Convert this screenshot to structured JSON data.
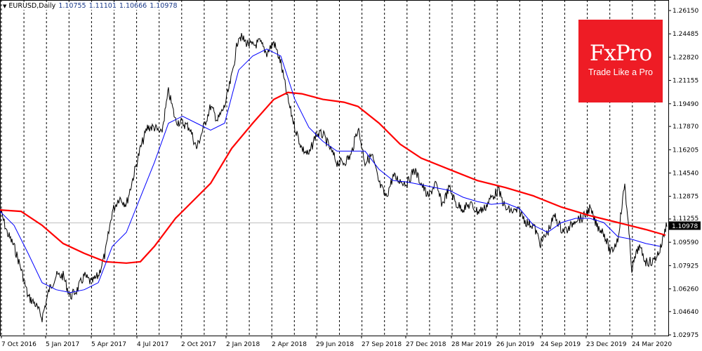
{
  "header": {
    "symbol": "EURUSD,Daily",
    "open": "1.10755",
    "high": "1.11101",
    "low": "1.10666",
    "close": "1.10978"
  },
  "logo": {
    "brand": "FxPro",
    "tagline": "Trade Like a Pro",
    "color": "#ee1c25"
  },
  "chart_data": {
    "type": "line",
    "x_unit": "trading days",
    "y_ticks": [
      "1.26150",
      "1.24485",
      "1.22820",
      "1.21155",
      "1.19490",
      "1.17870",
      "1.16205",
      "1.14540",
      "1.12875",
      "1.11255",
      "1.09590",
      "1.07925",
      "1.06260",
      "1.04640",
      "1.02975"
    ],
    "ylim": [
      1.02975,
      1.2615
    ],
    "x_ticks": [
      {
        "label": "7 Oct 2016",
        "bar": 2
      },
      {
        "label": "5 Jan 2017",
        "bar": 65
      },
      {
        "label": "5 Apr 2017",
        "bar": 130
      },
      {
        "label": "4 Jul 2017",
        "bar": 195
      },
      {
        "label": "2 Oct 2017",
        "bar": 258
      },
      {
        "label": "2 Jan 2018",
        "bar": 322
      },
      {
        "label": "2 Apr 2018",
        "bar": 387
      },
      {
        "label": "29 Jun 2018",
        "bar": 450
      },
      {
        "label": "27 Sep 2018",
        "bar": 515
      },
      {
        "label": "27 Dec 2018",
        "bar": 578
      },
      {
        "label": "28 Mar 2019",
        "bar": 643
      },
      {
        "label": "26 Jun 2019",
        "bar": 707
      },
      {
        "label": "24 Sep 2019",
        "bar": 770
      },
      {
        "label": "23 Dec 2019",
        "bar": 835
      },
      {
        "label": "24 Mar 2020",
        "bar": 900
      }
    ],
    "current_price": "1.10978",
    "grid": "vertical dashed",
    "price_step_bars": 10,
    "price": [
      1.12,
      1.103,
      1.093,
      1.077,
      1.057,
      1.052,
      1.042,
      1.062,
      1.072,
      1.072,
      1.057,
      1.062,
      1.072,
      1.067,
      1.072,
      1.088,
      1.118,
      1.128,
      1.123,
      1.143,
      1.163,
      1.178,
      1.178,
      1.173,
      1.204,
      1.183,
      1.181,
      1.178,
      1.163,
      1.178,
      1.193,
      1.183,
      1.193,
      1.214,
      1.244,
      1.239,
      1.236,
      1.239,
      1.231,
      1.239,
      1.224,
      1.198,
      1.178,
      1.163,
      1.158,
      1.173,
      1.173,
      1.163,
      1.153,
      1.153,
      1.158,
      1.178,
      1.153,
      1.158,
      1.138,
      1.128,
      1.143,
      1.14,
      1.138,
      1.148,
      1.138,
      1.128,
      1.138,
      1.123,
      1.135,
      1.123,
      1.12,
      1.123,
      1.118,
      1.12,
      1.128,
      1.133,
      1.12,
      1.118,
      1.118,
      1.11,
      1.108,
      1.095,
      1.103,
      1.115,
      1.105,
      1.105,
      1.113,
      1.113,
      1.12,
      1.108,
      1.103,
      1.088,
      1.098,
      1.138,
      1.077,
      1.093,
      1.082,
      1.082,
      1.09,
      1.11
    ],
    "series": [
      {
        "color": "#ff0000",
        "points": [
          [
            0,
            1.119
          ],
          [
            30,
            1.118
          ],
          [
            60,
            1.108
          ],
          [
            90,
            1.095
          ],
          [
            120,
            1.088
          ],
          [
            150,
            1.082
          ],
          [
            180,
            1.081
          ],
          [
            200,
            1.082
          ],
          [
            220,
            1.093
          ],
          [
            250,
            1.113
          ],
          [
            280,
            1.128
          ],
          [
            300,
            1.138
          ],
          [
            330,
            1.163
          ],
          [
            360,
            1.181
          ],
          [
            390,
            1.198
          ],
          [
            410,
            1.203
          ],
          [
            430,
            1.202
          ],
          [
            460,
            1.198
          ],
          [
            490,
            1.196
          ],
          [
            510,
            1.193
          ],
          [
            540,
            1.181
          ],
          [
            570,
            1.166
          ],
          [
            600,
            1.156
          ],
          [
            640,
            1.148
          ],
          [
            680,
            1.14
          ],
          [
            720,
            1.135
          ],
          [
            760,
            1.129
          ],
          [
            800,
            1.121
          ],
          [
            840,
            1.115
          ],
          [
            880,
            1.11
          ],
          [
            920,
            1.105
          ],
          [
            948,
            1.101
          ]
        ]
      },
      {
        "color": "#0000ff",
        "points": [
          [
            0,
            1.118
          ],
          [
            20,
            1.108
          ],
          [
            40,
            1.088
          ],
          [
            60,
            1.067
          ],
          [
            80,
            1.062
          ],
          [
            100,
            1.06
          ],
          [
            120,
            1.062
          ],
          [
            140,
            1.067
          ],
          [
            160,
            1.093
          ],
          [
            180,
            1.103
          ],
          [
            200,
            1.128
          ],
          [
            220,
            1.153
          ],
          [
            240,
            1.181
          ],
          [
            260,
            1.186
          ],
          [
            280,
            1.181
          ],
          [
            300,
            1.176
          ],
          [
            320,
            1.181
          ],
          [
            340,
            1.219
          ],
          [
            360,
            1.229
          ],
          [
            380,
            1.234
          ],
          [
            400,
            1.229
          ],
          [
            420,
            1.198
          ],
          [
            440,
            1.178
          ],
          [
            460,
            1.168
          ],
          [
            480,
            1.161
          ],
          [
            500,
            1.161
          ],
          [
            520,
            1.161
          ],
          [
            540,
            1.148
          ],
          [
            560,
            1.14
          ],
          [
            580,
            1.139
          ],
          [
            600,
            1.137
          ],
          [
            620,
            1.135
          ],
          [
            640,
            1.133
          ],
          [
            660,
            1.128
          ],
          [
            680,
            1.125
          ],
          [
            700,
            1.123
          ],
          [
            720,
            1.124
          ],
          [
            740,
            1.12
          ],
          [
            760,
            1.108
          ],
          [
            780,
            1.103
          ],
          [
            800,
            1.11
          ],
          [
            820,
            1.113
          ],
          [
            840,
            1.113
          ],
          [
            860,
            1.11
          ],
          [
            880,
            1.1
          ],
          [
            900,
            1.098
          ],
          [
            920,
            1.095
          ],
          [
            940,
            1.093
          ]
        ]
      }
    ]
  }
}
